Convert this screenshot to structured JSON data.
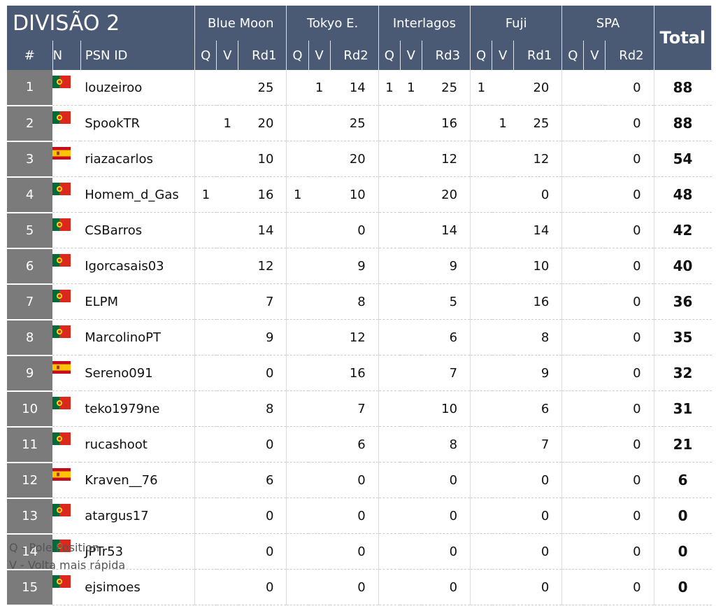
{
  "header": {
    "title": "DIVISÃO 2",
    "pos": "#",
    "flag": "N",
    "name": "PSN ID",
    "total": "Total",
    "tracks": [
      {
        "name": "Blue Moon",
        "cols": [
          "Q",
          "V",
          "Rd1"
        ]
      },
      {
        "name": "Tokyo E.",
        "cols": [
          "Q",
          "V",
          "Rd2"
        ]
      },
      {
        "name": "Interlagos",
        "cols": [
          "Q",
          "V",
          "Rd3"
        ]
      },
      {
        "name": "Fuji",
        "cols": [
          "Q",
          "V",
          "Rd1"
        ]
      },
      {
        "name": "SPA",
        "cols": [
          "Q",
          "V",
          "Rd2"
        ]
      }
    ]
  },
  "rows": [
    {
      "pos": 1,
      "name": "louzeiroo",
      "tracks": [
        [
          null,
          null,
          25
        ],
        [
          null,
          1,
          14
        ],
        [
          1,
          1,
          25
        ],
        [
          1,
          null,
          20
        ],
        [
          null,
          null,
          0
        ]
      ],
      "total": 88
    },
    {
      "pos": 2,
      "name": "SpookTR",
      "tracks": [
        [
          null,
          1,
          20
        ],
        [
          null,
          null,
          25
        ],
        [
          null,
          null,
          16
        ],
        [
          null,
          1,
          25
        ],
        [
          null,
          null,
          0
        ]
      ],
      "total": 88
    },
    {
      "pos": 3,
      "name": "riazacarlos",
      "tracks": [
        [
          null,
          null,
          10
        ],
        [
          null,
          null,
          20
        ],
        [
          null,
          null,
          12
        ],
        [
          null,
          null,
          12
        ],
        [
          null,
          null,
          0
        ]
      ],
      "total": 54
    },
    {
      "pos": 4,
      "name": "Homem_d_Gas",
      "tracks": [
        [
          1,
          null,
          16
        ],
        [
          1,
          null,
          10
        ],
        [
          null,
          null,
          20
        ],
        [
          null,
          null,
          0
        ],
        [
          null,
          null,
          0
        ]
      ],
      "total": 48
    },
    {
      "pos": 5,
      "name": "CSBarros",
      "tracks": [
        [
          null,
          null,
          14
        ],
        [
          null,
          null,
          0
        ],
        [
          null,
          null,
          14
        ],
        [
          null,
          null,
          14
        ],
        [
          null,
          null,
          0
        ]
      ],
      "total": 42
    },
    {
      "pos": 6,
      "name": "Igorcasais03",
      "tracks": [
        [
          null,
          null,
          12
        ],
        [
          null,
          null,
          9
        ],
        [
          null,
          null,
          9
        ],
        [
          null,
          null,
          10
        ],
        [
          null,
          null,
          0
        ]
      ],
      "total": 40
    },
    {
      "pos": 7,
      "name": "ELPM",
      "tracks": [
        [
          null,
          null,
          7
        ],
        [
          null,
          null,
          8
        ],
        [
          null,
          null,
          5
        ],
        [
          null,
          null,
          16
        ],
        [
          null,
          null,
          0
        ]
      ],
      "total": 36
    },
    {
      "pos": 8,
      "name": "MarcolinoPT",
      "tracks": [
        [
          null,
          null,
          9
        ],
        [
          null,
          null,
          12
        ],
        [
          null,
          null,
          6
        ],
        [
          null,
          null,
          8
        ],
        [
          null,
          null,
          0
        ]
      ],
      "total": 35
    },
    {
      "pos": 9,
      "name": "Sereno091",
      "tracks": [
        [
          null,
          null,
          0
        ],
        [
          null,
          null,
          16
        ],
        [
          null,
          null,
          7
        ],
        [
          null,
          null,
          9
        ],
        [
          null,
          null,
          0
        ]
      ],
      "total": 32
    },
    {
      "pos": 10,
      "name": "teko1979ne",
      "tracks": [
        [
          null,
          null,
          8
        ],
        [
          null,
          null,
          7
        ],
        [
          null,
          null,
          10
        ],
        [
          null,
          null,
          6
        ],
        [
          null,
          null,
          0
        ]
      ],
      "total": 31
    },
    {
      "pos": 11,
      "name": "rucashoot",
      "tracks": [
        [
          null,
          null,
          0
        ],
        [
          null,
          null,
          6
        ],
        [
          null,
          null,
          8
        ],
        [
          null,
          null,
          7
        ],
        [
          null,
          null,
          0
        ]
      ],
      "total": 21
    },
    {
      "pos": 12,
      "name": "Kraven__76",
      "tracks": [
        [
          null,
          null,
          6
        ],
        [
          null,
          null,
          0
        ],
        [
          null,
          null,
          0
        ],
        [
          null,
          null,
          0
        ],
        [
          null,
          null,
          0
        ]
      ],
      "total": 6
    },
    {
      "pos": 13,
      "name": "atargus17",
      "tracks": [
        [
          null,
          null,
          0
        ],
        [
          null,
          null,
          0
        ],
        [
          null,
          null,
          0
        ],
        [
          null,
          null,
          0
        ],
        [
          null,
          null,
          0
        ]
      ],
      "total": 0
    },
    {
      "pos": 14,
      "name": "JPTr53",
      "tracks": [
        [
          null,
          null,
          0
        ],
        [
          null,
          null,
          0
        ],
        [
          null,
          null,
          0
        ],
        [
          null,
          null,
          0
        ],
        [
          null,
          null,
          0
        ]
      ],
      "total": 0
    },
    {
      "pos": 15,
      "name": "ejsimoes",
      "tracks": [
        [
          null,
          null,
          0
        ],
        [
          null,
          null,
          0
        ],
        [
          null,
          null,
          0
        ],
        [
          null,
          null,
          0
        ],
        [
          null,
          null,
          0
        ]
      ],
      "total": 0
    }
  ],
  "notes": [
    "Q - Pole Position",
    "V - Volta mais rápida"
  ]
}
